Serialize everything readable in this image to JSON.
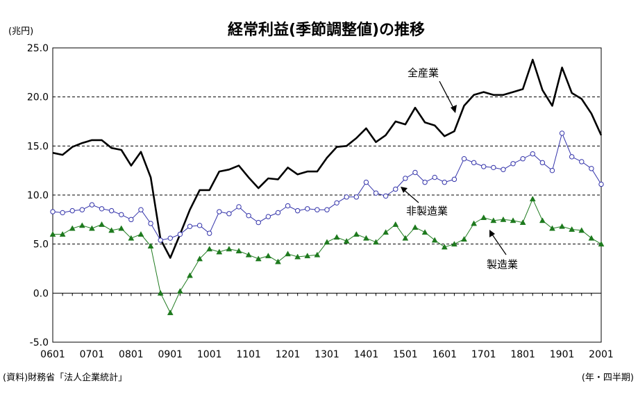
{
  "chart_data": {
    "type": "line",
    "title": "経常利益(季節調整値)の推移",
    "y_unit_label": "(兆円)",
    "x_unit_label": "(年・四半期)",
    "source_note": "(資料)財務省「法人企業統計」",
    "ylim": [
      -5.0,
      25.0
    ],
    "yticks": [
      "-5.0",
      "0.0",
      "5.0",
      "10.0",
      "15.0",
      "20.0",
      "25.0"
    ],
    "grid": "horizontal dashed",
    "x_tick_labels": [
      "0601",
      "0701",
      "0801",
      "0901",
      "1001",
      "1101",
      "1201",
      "1301",
      "1401",
      "1501",
      "1601",
      "1701",
      "1801",
      "1901",
      "2001"
    ],
    "x": [
      "0601",
      "0602",
      "0603",
      "0604",
      "0701",
      "0702",
      "0703",
      "0704",
      "0801",
      "0802",
      "0803",
      "0804",
      "0901",
      "0902",
      "0903",
      "0904",
      "1001",
      "1002",
      "1003",
      "1004",
      "1101",
      "1102",
      "1103",
      "1104",
      "1201",
      "1202",
      "1203",
      "1204",
      "1301",
      "1302",
      "1303",
      "1304",
      "1401",
      "1402",
      "1403",
      "1404",
      "1501",
      "1502",
      "1503",
      "1504",
      "1601",
      "1602",
      "1603",
      "1604",
      "1701",
      "1702",
      "1703",
      "1704",
      "1801",
      "1802",
      "1803",
      "1804",
      "1901",
      "1902",
      "1903",
      "1904",
      "2001"
    ],
    "series": [
      {
        "name": "全産業",
        "color": "#000000",
        "marker": "none",
        "values": [
          14.3,
          14.1,
          14.9,
          15.3,
          15.6,
          15.6,
          14.8,
          14.6,
          13.0,
          14.4,
          11.8,
          5.5,
          3.6,
          6.0,
          8.5,
          10.5,
          10.5,
          12.4,
          12.6,
          13.0,
          11.8,
          10.7,
          11.7,
          11.6,
          12.8,
          12.1,
          12.4,
          12.4,
          13.8,
          14.9,
          15.0,
          15.8,
          16.8,
          15.4,
          16.1,
          17.5,
          17.2,
          18.9,
          17.4,
          17.1,
          16.0,
          16.5,
          19.1,
          20.2,
          20.5,
          20.2,
          20.2,
          20.5,
          20.8,
          23.8,
          20.7,
          19.1,
          23.0,
          20.4,
          19.8,
          18.3,
          16.1
        ]
      },
      {
        "name": "非製造業",
        "color": "#3333aa",
        "marker": "open-circle",
        "values": [
          8.3,
          8.2,
          8.4,
          8.5,
          9.0,
          8.6,
          8.4,
          8.0,
          7.5,
          8.5,
          7.1,
          5.4,
          5.6,
          6.0,
          6.8,
          6.9,
          6.1,
          8.3,
          8.1,
          8.8,
          7.9,
          7.2,
          7.8,
          8.2,
          8.9,
          8.4,
          8.6,
          8.5,
          8.5,
          9.2,
          9.8,
          9.8,
          11.3,
          10.2,
          9.9,
          10.6,
          11.7,
          12.3,
          11.3,
          11.8,
          11.3,
          11.6,
          13.7,
          13.3,
          12.9,
          12.8,
          12.6,
          13.2,
          13.7,
          14.2,
          13.3,
          12.5,
          16.3,
          13.9,
          13.4,
          12.7,
          11.1
        ]
      },
      {
        "name": "製造業",
        "color": "#1e7a1e",
        "marker": "filled-triangle",
        "values": [
          6.0,
          6.0,
          6.6,
          6.9,
          6.6,
          7.0,
          6.4,
          6.6,
          5.6,
          6.0,
          4.8,
          0.0,
          -2.0,
          0.2,
          1.8,
          3.5,
          4.5,
          4.2,
          4.5,
          4.3,
          3.9,
          3.5,
          3.8,
          3.2,
          4.0,
          3.7,
          3.8,
          3.9,
          5.2,
          5.7,
          5.3,
          6.0,
          5.6,
          5.2,
          6.2,
          7.0,
          5.6,
          6.7,
          6.2,
          5.4,
          4.7,
          5.0,
          5.5,
          7.1,
          7.7,
          7.4,
          7.5,
          7.4,
          7.2,
          9.6,
          7.4,
          6.6,
          6.8,
          6.5,
          6.4,
          5.6,
          5.0
        ]
      }
    ]
  }
}
